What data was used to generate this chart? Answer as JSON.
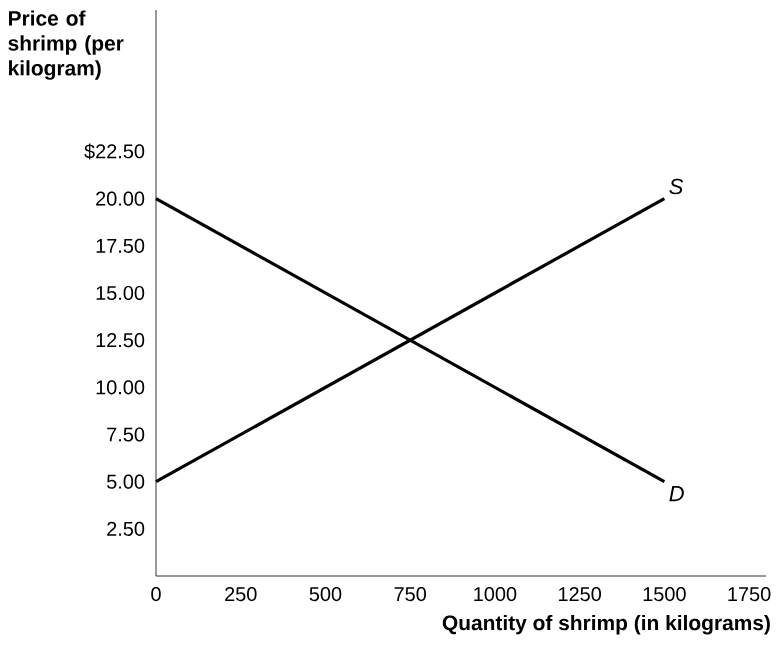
{
  "chart_data": {
    "type": "line",
    "xlabel": "Quantity of shrimp (in kilograms)",
    "ylabel": "Price of shrimp (per kilogram)",
    "xlim": [
      0,
      1800
    ],
    "ylim": [
      0,
      30
    ],
    "xticks": [
      0,
      250,
      500,
      750,
      1000,
      1250,
      1500,
      1750
    ],
    "yticks": [
      {
        "value": 2.5,
        "label": "2.50"
      },
      {
        "value": 5,
        "label": "5.00"
      },
      {
        "value": 7.5,
        "label": "7.50"
      },
      {
        "value": 10,
        "label": "10.00"
      },
      {
        "value": 12.5,
        "label": "12.50"
      },
      {
        "value": 15,
        "label": "15.00"
      },
      {
        "value": 17.5,
        "label": "17.50"
      },
      {
        "value": 20,
        "label": "20.00"
      },
      {
        "value": 22.5,
        "label": "$22.50"
      }
    ],
    "x": [
      0,
      1500
    ],
    "series": [
      {
        "name": "S",
        "color": "#000000",
        "values": [
          5,
          20
        ]
      },
      {
        "name": "D",
        "color": "#000000",
        "values": [
          20,
          5
        ]
      }
    ]
  }
}
